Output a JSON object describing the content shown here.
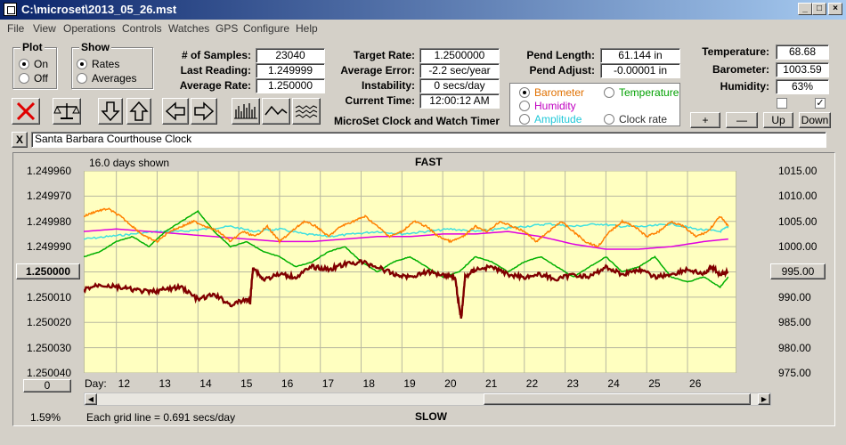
{
  "window": {
    "title": "C:\\microset\\2013_05_26.mst"
  },
  "menu": [
    "File",
    "View",
    "Operations",
    "Controls",
    "Watches",
    "GPS",
    "Configure",
    "Help"
  ],
  "plot_group": {
    "title": "Plot",
    "on": "On",
    "off": "Off",
    "selected": "On"
  },
  "show_group": {
    "title": "Show",
    "rates": "Rates",
    "averages": "Averages",
    "selected": "Rates"
  },
  "stats": {
    "samples_label": "# of Samples:",
    "samples": "23040",
    "last_label": "Last Reading:",
    "last": "1.249999",
    "avgrate_label": "Average Rate:",
    "avgrate": "1.250000",
    "target_label": "Target Rate:",
    "target": "1.2500000",
    "avgerr_label": "Average Error:",
    "avgerr": "-2.2 sec/year",
    "instab_label": "Instability:",
    "instab": "0 secs/day",
    "curtime_label": "Current Time:",
    "curtime": "12:00:12 AM",
    "pendlen_label": "Pend Length:",
    "pendlen": "61.144 in",
    "pendadj_label": "Pend Adjust:",
    "pendadj": "-0.00001 in",
    "temp_label": "Temperature:",
    "temp": "68.68",
    "baro_label": "Barometer:",
    "baro": "1003.59",
    "humid_label": "Humidity:",
    "humid": "63%"
  },
  "app_title": "MicroSet Clock and Watch Timer",
  "sensor_select": {
    "barometer": "Barometer",
    "temperature": "Temperature",
    "humidity": "Humidity",
    "amplitude": "Amplitude",
    "clockrate": "Clock rate",
    "selected": "Barometer"
  },
  "sensor_buttons": {
    "plus": "+",
    "minus": "—",
    "up": "Up",
    "down": "Down"
  },
  "clock_name": "Santa Barbara Courthouse Clock",
  "close_x": "X",
  "plot": {
    "days_shown": "16.0 days shown",
    "top_label": "FAST",
    "bottom_label": "SLOW",
    "grid_note": "Each grid line = 0.691 secs/day",
    "percent": "1.59%",
    "center_left": "1.250000",
    "center_right": "995.00",
    "zero_button": "0",
    "day_label": "Day:"
  },
  "colors": {
    "plot_bg": "#ffffc0",
    "clock_rate": "#800000",
    "barometer": "#ff8000",
    "temperature": "#00b000",
    "humidity": "#e000e0",
    "amplitude": "#40e0e0"
  },
  "chart_data": {
    "type": "line",
    "left_ticks": [
      "1.249960",
      "1.249970",
      "1.249980",
      "1.249990",
      "1.250000",
      "1.250010",
      "1.250020",
      "1.250030",
      "1.250040"
    ],
    "right_ticks": [
      "1015.00",
      "1010.00",
      "1005.00",
      "1000.00",
      "995.00",
      "990.00",
      "985.00",
      "980.00",
      "975.00"
    ],
    "day_ticks": [
      "12",
      "13",
      "14",
      "15",
      "16",
      "17",
      "18",
      "19",
      "20",
      "21",
      "22",
      "23",
      "24",
      "25",
      "26"
    ],
    "day_range": [
      11.2,
      27.2
    ],
    "y_range_left": [
      1.24996,
      1.25004
    ],
    "y_range_right": [
      975,
      1015
    ],
    "series": [
      {
        "key": "clock_rate",
        "axis": "left",
        "x": [
          11.2,
          11.6,
          12.0,
          12.4,
          12.8,
          13.2,
          13.6,
          14.0,
          14.4,
          14.8,
          15.2,
          15.28,
          15.35,
          15.6,
          16.0,
          16.4,
          16.8,
          17.2,
          17.6,
          18.0,
          18.4,
          18.8,
          19.2,
          19.6,
          20.0,
          20.3,
          20.45,
          20.55,
          20.8,
          21.2,
          21.6,
          22.0,
          22.4,
          22.8,
          23.2,
          23.6,
          24.0,
          24.4,
          24.8,
          25.2,
          25.6,
          26.0,
          26.4,
          26.6,
          26.8,
          27.0
        ],
        "y": [
          1.250007,
          1.250005,
          1.250006,
          1.250007,
          1.250008,
          1.250007,
          1.250006,
          1.250011,
          1.250009,
          1.250013,
          1.250011,
          1.250012,
          1.249998,
          1.250003,
          1.250001,
          1.250002,
          1.249998,
          1.249999,
          1.249997,
          1.249996,
          1.249998,
          1.250001,
          1.250002,
          1.25,
          1.250001,
          1.250002,
          1.250019,
          1.250002,
          1.249999,
          1.249998,
          1.250001,
          1.250002,
          1.250001,
          1.250003,
          1.250001,
          1.250002,
          1.249998,
          1.250001,
          1.249999,
          1.250002,
          1.250001,
          1.249999,
          1.250001,
          1.249998,
          1.250001,
          1.25
        ]
      },
      {
        "key": "barometer",
        "axis": "right",
        "x": [
          11.2,
          11.5,
          11.8,
          12.1,
          12.4,
          12.7,
          13.0,
          13.3,
          13.6,
          13.9,
          14.2,
          14.5,
          14.8,
          15.1,
          15.4,
          15.7,
          16.0,
          16.3,
          16.6,
          16.9,
          17.2,
          17.5,
          17.8,
          18.1,
          18.4,
          18.7,
          19.0,
          19.3,
          19.6,
          19.9,
          20.2,
          20.5,
          20.8,
          21.1,
          21.4,
          21.7,
          22.0,
          22.3,
          22.6,
          22.9,
          23.2,
          23.5,
          23.8,
          24.1,
          24.4,
          24.7,
          25.0,
          25.3,
          25.6,
          25.9,
          26.2,
          26.5,
          26.8,
          27.0
        ],
        "y": [
          1006,
          1007,
          1007.5,
          1006,
          1004,
          1002,
          1001,
          1003,
          1004,
          1005,
          1004,
          1003,
          1001,
          1003,
          1002,
          1004,
          1001,
          1003,
          1005,
          1004,
          1002,
          1004,
          1005,
          1006,
          1004,
          1002,
          1003,
          1005,
          1004,
          1002,
          1001,
          1002,
          1004,
          1003,
          1005,
          1004,
          1003,
          1001,
          1003,
          1005,
          1003,
          1001,
          1000,
          1003,
          1005,
          1004,
          1002,
          1003,
          1005,
          1004,
          1002,
          1003,
          1006,
          1004
        ]
      },
      {
        "key": "temperature",
        "axis": "right",
        "x": [
          11.2,
          11.6,
          12.0,
          12.4,
          12.8,
          13.2,
          13.6,
          14.0,
          14.4,
          14.8,
          15.2,
          15.6,
          16.0,
          16.4,
          16.8,
          17.2,
          17.6,
          18.0,
          18.4,
          18.8,
          19.2,
          19.6,
          20.0,
          20.4,
          20.8,
          21.2,
          21.6,
          22.0,
          22.4,
          22.8,
          23.2,
          23.6,
          24.0,
          24.4,
          24.8,
          25.2,
          25.6,
          26.0,
          26.4,
          26.8,
          27.0
        ],
        "y": [
          998,
          999,
          1001,
          1002,
          1000,
          1003,
          1005,
          1007,
          1003,
          1000,
          1001,
          999,
          998,
          996,
          997,
          999,
          1000,
          997,
          995,
          997,
          998,
          996,
          994,
          995,
          998,
          997,
          995,
          997,
          998,
          996,
          994,
          996,
          998,
          995,
          996,
          998,
          994,
          993,
          994,
          992,
          994
        ]
      },
      {
        "key": "humidity",
        "axis": "right",
        "x": [
          11.2,
          12.0,
          12.8,
          13.6,
          14.4,
          15.2,
          16.0,
          16.8,
          17.6,
          18.4,
          19.2,
          20.0,
          20.8,
          21.6,
          22.4,
          23.2,
          24.0,
          24.8,
          25.6,
          26.4,
          27.0
        ],
        "y": [
          1003,
          1003.5,
          1003,
          1002.5,
          1002,
          1001.5,
          1001,
          1001,
          1001.5,
          1002,
          1002,
          1002.5,
          1002.5,
          1003,
          1002,
          1000.5,
          999.5,
          999.5,
          1000,
          1001,
          1001.5
        ]
      },
      {
        "key": "amplitude",
        "axis": "right",
        "x": [
          11.2,
          11.8,
          12.4,
          13.0,
          13.6,
          14.2,
          14.8,
          15.4,
          16.0,
          16.6,
          17.2,
          17.8,
          18.4,
          19.0,
          19.6,
          20.2,
          20.8,
          21.4,
          22.0,
          22.6,
          23.2,
          23.8,
          24.4,
          25.0,
          25.6,
          26.2,
          26.8,
          27.0
        ],
        "y": [
          1001.5,
          1002,
          1002.5,
          1003,
          1003,
          1003.5,
          1004,
          1003,
          1003.5,
          1002.5,
          1002,
          1002.5,
          1003,
          1002.5,
          1003,
          1003.5,
          1003,
          1003.5,
          1004,
          1004.5,
          1004,
          1004.5,
          1004,
          1004,
          1004.5,
          1003.5,
          1003,
          1004
        ]
      }
    ]
  }
}
